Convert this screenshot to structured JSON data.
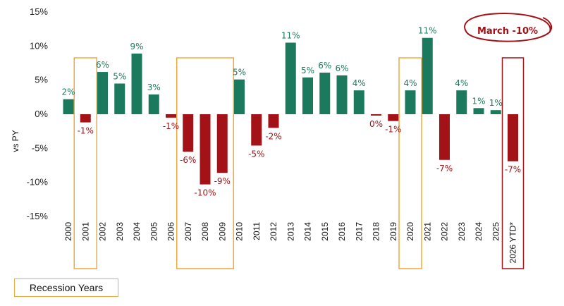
{
  "chart_data": {
    "type": "bar",
    "ylabel": "vs PY",
    "ylim": [
      -15,
      15
    ],
    "yticks": [
      "15%",
      "10%",
      "5%",
      "0%",
      "-5%",
      "-10%",
      "-15%"
    ],
    "categories": [
      "2000",
      "2001",
      "2002",
      "2003",
      "2004",
      "2005",
      "2006",
      "2007",
      "2008",
      "2009",
      "2010",
      "2011",
      "2012",
      "2013",
      "2014",
      "2015",
      "2016",
      "2017",
      "2018",
      "2019",
      "2020",
      "2021",
      "2022",
      "2023",
      "2024",
      "2025",
      "2026 YTD*"
    ],
    "values": [
      2.2,
      -1.2,
      6.2,
      4.5,
      8.9,
      2.9,
      -0.5,
      -5.5,
      -10.3,
      -8.6,
      5.1,
      -4.6,
      -2.0,
      10.5,
      5.4,
      6.1,
      5.7,
      3.5,
      -0.2,
      -1.0,
      3.5,
      11.2,
      -6.7,
      3.5,
      0.9,
      0.6,
      -6.9
    ],
    "data_labels": [
      "2%",
      "-1%",
      "6%",
      "5%",
      "9%",
      "3%",
      "-1%",
      "-6%",
      "-10%",
      "-9%",
      "5%",
      "-5%",
      "-2%",
      "11%",
      "5%",
      "6%",
      "6%",
      "4%",
      "0%",
      "-1%",
      "4%",
      "11%",
      "-7%",
      "4%",
      "1%",
      "1%",
      "-7%"
    ],
    "recession_years": [
      "2001",
      "2007",
      "2008",
      "2009",
      "2020"
    ],
    "highlighted_category": "2026 YTD*",
    "legend": "Recession Years",
    "annotation": "March -10%",
    "grid": false,
    "colors": {
      "positive": "#1b7a5e",
      "negative": "#a31216",
      "recession_box": "#f0a93b",
      "highlight_box": "#a31216",
      "axis": "#555555"
    }
  }
}
